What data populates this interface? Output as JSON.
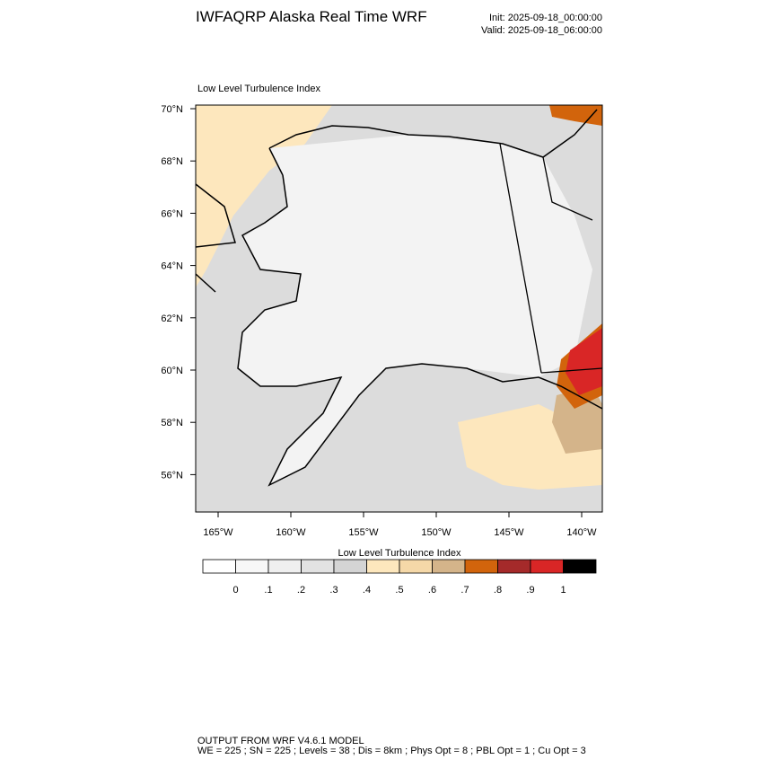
{
  "header": {
    "title": "IWFAQRP Alaska Real Time WRF",
    "init": "Init: 2025-09-18_00:00:00",
    "valid": "Valid: 2025-09-18_06:00:00"
  },
  "map": {
    "title": "Low Level Turbulence Index",
    "lat_labels": [
      "70°N",
      "68°N",
      "66°N",
      "64°N",
      "62°N",
      "60°N",
      "58°N",
      "56°N"
    ],
    "lon_labels": [
      "165°W",
      "160°W",
      "155°W",
      "150°W",
      "145°W",
      "140°W"
    ]
  },
  "colorbar": {
    "title": "Low Level Turbulence Index",
    "colors": [
      "#ffffff",
      "#f7f7f7",
      "#efefef",
      "#e2e2e2",
      "#d4d4d4",
      "#fde7bd",
      "#f5d8a8",
      "#d4b48a",
      "#d2640c",
      "#a52a2a",
      "#d92626",
      "#000000"
    ],
    "labels": [
      "0",
      ".1",
      ".2",
      ".3",
      ".4",
      ".5",
      ".6",
      ".7",
      ".8",
      ".9",
      "1"
    ]
  },
  "footer": {
    "line1": "OUTPUT FROM WRF V4.6.1 MODEL",
    "line2": "WE = 225 ; SN = 225 ; Levels = 38 ; Dis = 8km ; Phys Opt = 8 ; PBL Opt = 1 ; Cu Opt = 3"
  }
}
